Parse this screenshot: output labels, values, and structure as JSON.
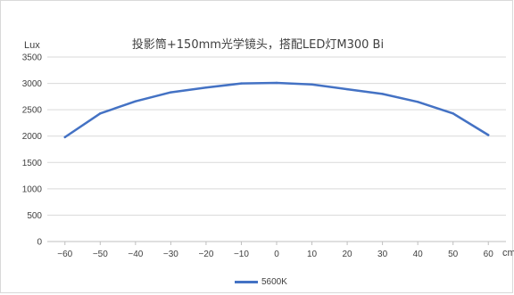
{
  "chart_data": {
    "type": "line",
    "title": "投影筒+150mm光学镜头，搭配LED灯M300 Bi",
    "ylabel": "Lux",
    "xlabel": "cm",
    "categories": [
      "−60",
      "−50",
      "−40",
      "−30",
      "−20",
      "−10",
      "0",
      "10",
      "20",
      "30",
      "40",
      "50",
      "60"
    ],
    "series": [
      {
        "name": "5600K",
        "color": "#4472c4",
        "values": [
          1980,
          2430,
          2660,
          2830,
          2920,
          3000,
          3010,
          2980,
          2890,
          2800,
          2650,
          2430,
          2020
        ]
      }
    ],
    "ylim": [
      0,
      3500
    ],
    "yticks": [
      "0",
      "500",
      "1000",
      "1500",
      "2000",
      "2500",
      "3000",
      "3500"
    ],
    "grid": true,
    "legend_position": "bottom"
  }
}
